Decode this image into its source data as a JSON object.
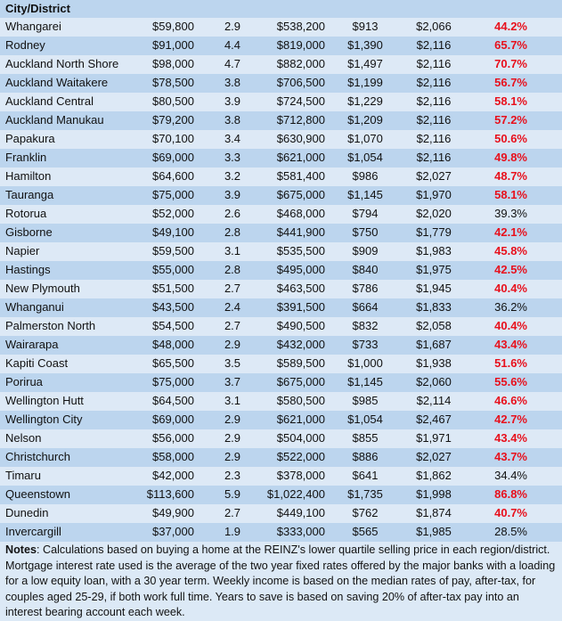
{
  "header": {
    "city_label": "City/District"
  },
  "rows": [
    {
      "city": "Whangarei",
      "income": "$59,800",
      "years": "2.9",
      "price": "$538,200",
      "mortgage": "$913",
      "weekly_income": "$2,066",
      "pct": "44.2%",
      "high": true
    },
    {
      "city": "Rodney",
      "income": "$91,000",
      "years": "4.4",
      "price": "$819,000",
      "mortgage": "$1,390",
      "weekly_income": "$2,116",
      "pct": "65.7%",
      "high": true
    },
    {
      "city": "Auckland North Shore",
      "income": "$98,000",
      "years": "4.7",
      "price": "$882,000",
      "mortgage": "$1,497",
      "weekly_income": "$2,116",
      "pct": "70.7%",
      "high": true
    },
    {
      "city": "Auckland Waitakere",
      "income": "$78,500",
      "years": "3.8",
      "price": "$706,500",
      "mortgage": "$1,199",
      "weekly_income": "$2,116",
      "pct": "56.7%",
      "high": true
    },
    {
      "city": "Auckland Central",
      "income": "$80,500",
      "years": "3.9",
      "price": "$724,500",
      "mortgage": "$1,229",
      "weekly_income": "$2,116",
      "pct": "58.1%",
      "high": true
    },
    {
      "city": "Auckland Manukau",
      "income": "$79,200",
      "years": "3.8",
      "price": "$712,800",
      "mortgage": "$1,209",
      "weekly_income": "$2,116",
      "pct": "57.2%",
      "high": true
    },
    {
      "city": "Papakura",
      "income": "$70,100",
      "years": "3.4",
      "price": "$630,900",
      "mortgage": "$1,070",
      "weekly_income": "$2,116",
      "pct": "50.6%",
      "high": true
    },
    {
      "city": "Franklin",
      "income": "$69,000",
      "years": "3.3",
      "price": "$621,000",
      "mortgage": "$1,054",
      "weekly_income": "$2,116",
      "pct": "49.8%",
      "high": true
    },
    {
      "city": "Hamilton",
      "income": "$64,600",
      "years": "3.2",
      "price": "$581,400",
      "mortgage": "$986",
      "weekly_income": "$2,027",
      "pct": "48.7%",
      "high": true
    },
    {
      "city": "Tauranga",
      "income": "$75,000",
      "years": "3.9",
      "price": "$675,000",
      "mortgage": "$1,145",
      "weekly_income": "$1,970",
      "pct": "58.1%",
      "high": true
    },
    {
      "city": "Rotorua",
      "income": "$52,000",
      "years": "2.6",
      "price": "$468,000",
      "mortgage": "$794",
      "weekly_income": "$2,020",
      "pct": "39.3%",
      "high": false
    },
    {
      "city": "Gisborne",
      "income": "$49,100",
      "years": "2.8",
      "price": "$441,900",
      "mortgage": "$750",
      "weekly_income": "$1,779",
      "pct": "42.1%",
      "high": true
    },
    {
      "city": "Napier",
      "income": "$59,500",
      "years": "3.1",
      "price": "$535,500",
      "mortgage": "$909",
      "weekly_income": "$1,983",
      "pct": "45.8%",
      "high": true
    },
    {
      "city": "Hastings",
      "income": "$55,000",
      "years": "2.8",
      "price": "$495,000",
      "mortgage": "$840",
      "weekly_income": "$1,975",
      "pct": "42.5%",
      "high": true
    },
    {
      "city": "New Plymouth",
      "income": "$51,500",
      "years": "2.7",
      "price": "$463,500",
      "mortgage": "$786",
      "weekly_income": "$1,945",
      "pct": "40.4%",
      "high": true
    },
    {
      "city": "Whanganui",
      "income": "$43,500",
      "years": "2.4",
      "price": "$391,500",
      "mortgage": "$664",
      "weekly_income": "$1,833",
      "pct": "36.2%",
      "high": false
    },
    {
      "city": "Palmerston North",
      "income": "$54,500",
      "years": "2.7",
      "price": "$490,500",
      "mortgage": "$832",
      "weekly_income": "$2,058",
      "pct": "40.4%",
      "high": true
    },
    {
      "city": "Wairarapa",
      "income": "$48,000",
      "years": "2.9",
      "price": "$432,000",
      "mortgage": "$733",
      "weekly_income": "$1,687",
      "pct": "43.4%",
      "high": true
    },
    {
      "city": "Kapiti Coast",
      "income": "$65,500",
      "years": "3.5",
      "price": "$589,500",
      "mortgage": "$1,000",
      "weekly_income": "$1,938",
      "pct": "51.6%",
      "high": true
    },
    {
      "city": "Porirua",
      "income": "$75,000",
      "years": "3.7",
      "price": "$675,000",
      "mortgage": "$1,145",
      "weekly_income": "$2,060",
      "pct": "55.6%",
      "high": true
    },
    {
      "city": "Wellington Hutt",
      "income": "$64,500",
      "years": "3.1",
      "price": "$580,500",
      "mortgage": "$985",
      "weekly_income": "$2,114",
      "pct": "46.6%",
      "high": true
    },
    {
      "city": "Wellington City",
      "income": "$69,000",
      "years": "2.9",
      "price": "$621,000",
      "mortgage": "$1,054",
      "weekly_income": "$2,467",
      "pct": "42.7%",
      "high": true
    },
    {
      "city": "Nelson",
      "income": "$56,000",
      "years": "2.9",
      "price": "$504,000",
      "mortgage": "$855",
      "weekly_income": "$1,971",
      "pct": "43.4%",
      "high": true
    },
    {
      "city": "Christchurch",
      "income": "$58,000",
      "years": "2.9",
      "price": "$522,000",
      "mortgage": "$886",
      "weekly_income": "$2,027",
      "pct": "43.7%",
      "high": true
    },
    {
      "city": "Timaru",
      "income": "$42,000",
      "years": "2.3",
      "price": "$378,000",
      "mortgage": "$641",
      "weekly_income": "$1,862",
      "pct": "34.4%",
      "high": false
    },
    {
      "city": "Queenstown",
      "income": "$113,600",
      "years": "5.9",
      "price": "$1,022,400",
      "mortgage": "$1,735",
      "weekly_income": "$1,998",
      "pct": "86.8%",
      "high": true
    },
    {
      "city": "Dunedin",
      "income": "$49,900",
      "years": "2.7",
      "price": "$449,100",
      "mortgage": "$762",
      "weekly_income": "$1,874",
      "pct": "40.7%",
      "high": true
    },
    {
      "city": "Invercargill",
      "income": "$37,000",
      "years": "1.9",
      "price": "$333,000",
      "mortgage": "$565",
      "weekly_income": "$1,985",
      "pct": "28.5%",
      "high": false
    }
  ],
  "notes": {
    "label": "Notes",
    "text": ": Calculations based on buying a home at the REINZ's lower quartile selling price in each region/district. Mortgage interest rate used is the average of the two year fixed rates offered by the major banks with a loading for a low equity loan, with a 30 year term. Weekly income is based on the median rates of pay, after-tax, for couples aged 25-29, if both work full time. Years to save is based on saving 20% of after-tax pay into an interest bearing account each week."
  },
  "colors": {
    "highlight_red": "#e8101c",
    "row_light": "#dde9f6",
    "row_dark": "#bcd5ee"
  }
}
